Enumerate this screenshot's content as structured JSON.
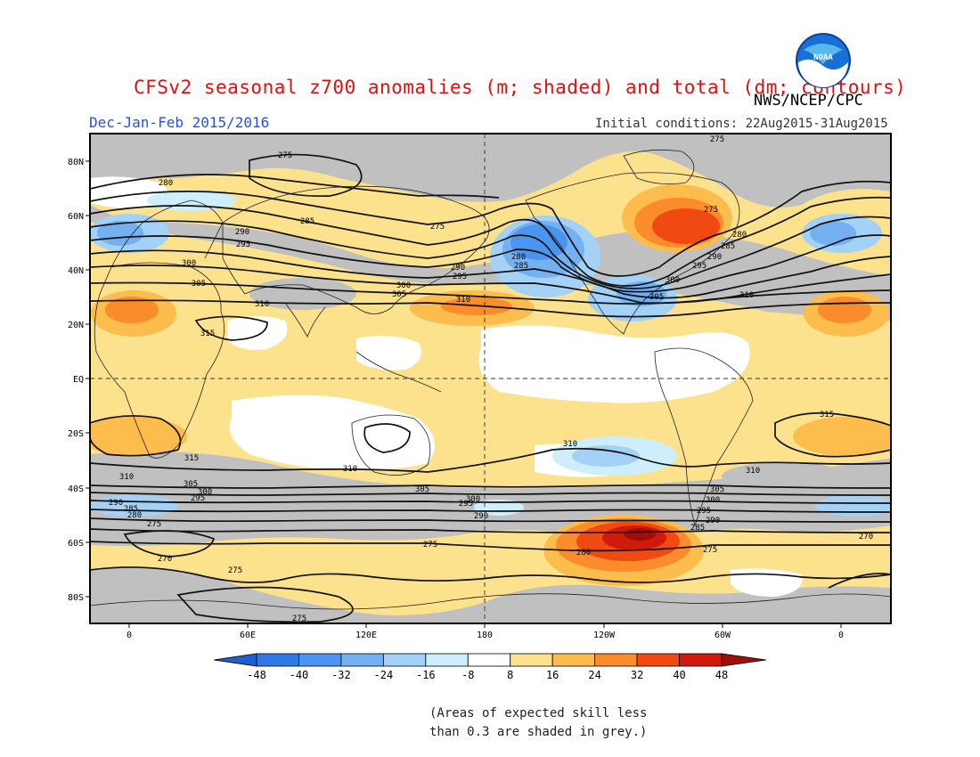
{
  "header": {
    "title": "CFSv2 seasonal z700 anomalies (m; shaded) and total (dm; contours)",
    "season": "Dec-Jan-Feb 2015/2016",
    "initial_conditions": "Initial conditions: 22Aug2015-31Aug2015",
    "agency": "NWS/NCEP/CPC",
    "logo_text": "NOAA"
  },
  "map": {
    "lat_labels": [
      "80N",
      "60N",
      "40N",
      "20N",
      "EQ",
      "20S",
      "40S",
      "60S",
      "80S"
    ],
    "lon_labels": [
      "0",
      "60E",
      "120E",
      "180",
      "120W",
      "60W",
      "0"
    ],
    "contour_labels": [
      {
        "text": "275"
      },
      {
        "text": "275"
      },
      {
        "text": "280"
      },
      {
        "text": "285"
      },
      {
        "text": "290"
      },
      {
        "text": "295"
      },
      {
        "text": "300"
      },
      {
        "text": "305"
      },
      {
        "text": "310"
      },
      {
        "text": "315"
      },
      {
        "text": "275"
      },
      {
        "text": "300"
      },
      {
        "text": "305"
      },
      {
        "text": "290"
      },
      {
        "text": "295"
      },
      {
        "text": "310"
      },
      {
        "text": "280"
      },
      {
        "text": "285"
      },
      {
        "text": "275"
      },
      {
        "text": "280"
      },
      {
        "text": "285"
      },
      {
        "text": "290"
      },
      {
        "text": "295"
      },
      {
        "text": "300"
      },
      {
        "text": "305"
      },
      {
        "text": "310"
      },
      {
        "text": "315"
      },
      {
        "text": "315"
      },
      {
        "text": "310"
      },
      {
        "text": "310"
      },
      {
        "text": "310"
      },
      {
        "text": "310"
      },
      {
        "text": "305"
      },
      {
        "text": "300"
      },
      {
        "text": "295"
      },
      {
        "text": "290"
      },
      {
        "text": "285"
      },
      {
        "text": "280"
      },
      {
        "text": "275"
      },
      {
        "text": "305"
      },
      {
        "text": "300"
      },
      {
        "text": "295"
      },
      {
        "text": "290"
      },
      {
        "text": "305"
      },
      {
        "text": "300"
      },
      {
        "text": "295"
      },
      {
        "text": "290"
      },
      {
        "text": "285"
      },
      {
        "text": "275"
      },
      {
        "text": "280"
      },
      {
        "text": "270"
      },
      {
        "text": "275"
      },
      {
        "text": "270"
      },
      {
        "text": "275"
      },
      {
        "text": "275"
      }
    ]
  },
  "colorbar": {
    "ticks": [
      "-48",
      "-40",
      "-32",
      "-24",
      "-16",
      "-8",
      "8",
      "16",
      "24",
      "32",
      "40",
      "48"
    ],
    "colors": [
      "#1f5fcf",
      "#2e79e6",
      "#4a95ef",
      "#73b1f3",
      "#a4d2f7",
      "#cdeefa",
      "#ffffff",
      "#fde28d",
      "#fdbd4d",
      "#fb8c2c",
      "#f04a12",
      "#cf1a0c",
      "#a10e0a"
    ]
  },
  "note": {
    "line1": "(Areas of expected skill less",
    "line2": "than 0.3 are shaded in grey.)"
  }
}
